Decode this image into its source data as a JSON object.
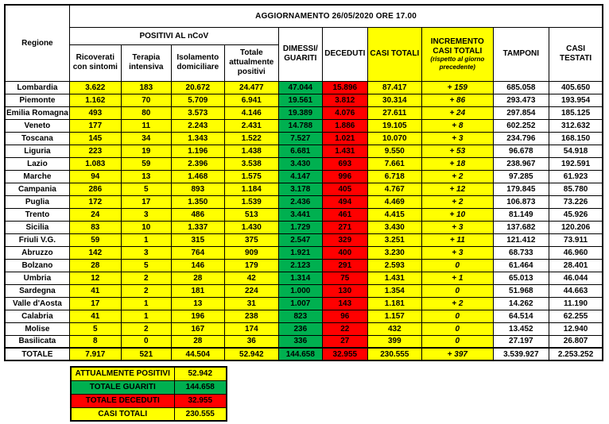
{
  "title": "AGGIORNAMENTO 26/05/2020 ORE 17.00",
  "table": {
    "headers": {
      "regione": "Regione",
      "positivi_group": "POSITIVI AL nCoV",
      "ricoverati": "Ricoverati con sintomi",
      "terapia": "Terapia intensiva",
      "isolamento": "Isolamento domiciliare",
      "totale_positivi": "Totale attualmente positivi",
      "guariti": "DIMESSI/ GUARITI",
      "deceduti": "DECEDUTI",
      "casi_totali": "CASI TOTALI",
      "incremento": "INCREMENTO CASI  TOTALI",
      "incremento_note": "(rispetto al giorno precedente)",
      "tamponi": "TAMPONI",
      "casi_testati": "CASI TESTATI"
    },
    "rows": [
      {
        "name": "Lombardia",
        "ricoverati": "3.622",
        "terapia": "183",
        "isolamento": "20.672",
        "totale_positivi": "24.477",
        "guariti": "47.044",
        "deceduti": "15.896",
        "casi_totali": "87.417",
        "incremento": "+ 159",
        "tamponi": "685.058",
        "casi_testati": "405.650"
      },
      {
        "name": "Piemonte",
        "ricoverati": "1.162",
        "terapia": "70",
        "isolamento": "5.709",
        "totale_positivi": "6.941",
        "guariti": "19.561",
        "deceduti": "3.812",
        "casi_totali": "30.314",
        "incremento": "+ 86",
        "tamponi": "293.473",
        "casi_testati": "193.954"
      },
      {
        "name": "Emilia Romagna",
        "ricoverati": "493",
        "terapia": "80",
        "isolamento": "3.573",
        "totale_positivi": "4.146",
        "guariti": "19.389",
        "deceduti": "4.076",
        "casi_totali": "27.611",
        "incremento": "+ 24",
        "tamponi": "297.854",
        "casi_testati": "185.125"
      },
      {
        "name": "Veneto",
        "ricoverati": "177",
        "terapia": "11",
        "isolamento": "2.243",
        "totale_positivi": "2.431",
        "guariti": "14.788",
        "deceduti": "1.886",
        "casi_totali": "19.105",
        "incremento": "+ 8",
        "tamponi": "602.252",
        "casi_testati": "312.632"
      },
      {
        "name": "Toscana",
        "ricoverati": "145",
        "terapia": "34",
        "isolamento": "1.343",
        "totale_positivi": "1.522",
        "guariti": "7.527",
        "deceduti": "1.021",
        "casi_totali": "10.070",
        "incremento": "+ 3",
        "tamponi": "234.796",
        "casi_testati": "168.150"
      },
      {
        "name": "Liguria",
        "ricoverati": "223",
        "terapia": "19",
        "isolamento": "1.196",
        "totale_positivi": "1.438",
        "guariti": "6.681",
        "deceduti": "1.431",
        "casi_totali": "9.550",
        "incremento": "+ 53",
        "tamponi": "96.678",
        "casi_testati": "54.918"
      },
      {
        "name": "Lazio",
        "ricoverati": "1.083",
        "terapia": "59",
        "isolamento": "2.396",
        "totale_positivi": "3.538",
        "guariti": "3.430",
        "deceduti": "693",
        "casi_totali": "7.661",
        "incremento": "+ 18",
        "tamponi": "238.967",
        "casi_testati": "192.591"
      },
      {
        "name": "Marche",
        "ricoverati": "94",
        "terapia": "13",
        "isolamento": "1.468",
        "totale_positivi": "1.575",
        "guariti": "4.147",
        "deceduti": "996",
        "casi_totali": "6.718",
        "incremento": "+ 2",
        "tamponi": "97.285",
        "casi_testati": "61.923"
      },
      {
        "name": "Campania",
        "ricoverati": "286",
        "terapia": "5",
        "isolamento": "893",
        "totale_positivi": "1.184",
        "guariti": "3.178",
        "deceduti": "405",
        "casi_totali": "4.767",
        "incremento": "+ 12",
        "tamponi": "179.845",
        "casi_testati": "85.780"
      },
      {
        "name": "Puglia",
        "ricoverati": "172",
        "terapia": "17",
        "isolamento": "1.350",
        "totale_positivi": "1.539",
        "guariti": "2.436",
        "deceduti": "494",
        "casi_totali": "4.469",
        "incremento": "+ 2",
        "tamponi": "106.873",
        "casi_testati": "73.226"
      },
      {
        "name": "Trento",
        "ricoverati": "24",
        "terapia": "3",
        "isolamento": "486",
        "totale_positivi": "513",
        "guariti": "3.441",
        "deceduti": "461",
        "casi_totali": "4.415",
        "incremento": "+ 10",
        "tamponi": "81.149",
        "casi_testati": "45.926"
      },
      {
        "name": "Sicilia",
        "ricoverati": "83",
        "terapia": "10",
        "isolamento": "1.337",
        "totale_positivi": "1.430",
        "guariti": "1.729",
        "deceduti": "271",
        "casi_totali": "3.430",
        "incremento": "+ 3",
        "tamponi": "137.682",
        "casi_testati": "120.206"
      },
      {
        "name": "Friuli V.G.",
        "ricoverati": "59",
        "terapia": "1",
        "isolamento": "315",
        "totale_positivi": "375",
        "guariti": "2.547",
        "deceduti": "329",
        "casi_totali": "3.251",
        "incremento": "+ 11",
        "tamponi": "121.412",
        "casi_testati": "73.911"
      },
      {
        "name": "Abruzzo",
        "ricoverati": "142",
        "terapia": "3",
        "isolamento": "764",
        "totale_positivi": "909",
        "guariti": "1.921",
        "deceduti": "400",
        "casi_totali": "3.230",
        "incremento": "+ 3",
        "tamponi": "68.733",
        "casi_testati": "46.960"
      },
      {
        "name": "Bolzano",
        "ricoverati": "28",
        "terapia": "5",
        "isolamento": "146",
        "totale_positivi": "179",
        "guariti": "2.123",
        "deceduti": "291",
        "casi_totali": "2.593",
        "incremento": "0",
        "tamponi": "61.464",
        "casi_testati": "28.401"
      },
      {
        "name": "Umbria",
        "ricoverati": "12",
        "terapia": "2",
        "isolamento": "28",
        "totale_positivi": "42",
        "guariti": "1.314",
        "deceduti": "75",
        "casi_totali": "1.431",
        "incremento": "+ 1",
        "tamponi": "65.013",
        "casi_testati": "46.044"
      },
      {
        "name": "Sardegna",
        "ricoverati": "41",
        "terapia": "2",
        "isolamento": "181",
        "totale_positivi": "224",
        "guariti": "1.000",
        "deceduti": "130",
        "casi_totali": "1.354",
        "incremento": "0",
        "tamponi": "51.968",
        "casi_testati": "44.663"
      },
      {
        "name": "Valle d'Aosta",
        "ricoverati": "17",
        "terapia": "1",
        "isolamento": "13",
        "totale_positivi": "31",
        "guariti": "1.007",
        "deceduti": "143",
        "casi_totali": "1.181",
        "incremento": "+ 2",
        "tamponi": "14.262",
        "casi_testati": "11.190"
      },
      {
        "name": "Calabria",
        "ricoverati": "41",
        "terapia": "1",
        "isolamento": "196",
        "totale_positivi": "238",
        "guariti": "823",
        "deceduti": "96",
        "casi_totali": "1.157",
        "incremento": "0",
        "tamponi": "64.514",
        "casi_testati": "62.255"
      },
      {
        "name": "Molise",
        "ricoverati": "5",
        "terapia": "2",
        "isolamento": "167",
        "totale_positivi": "174",
        "guariti": "236",
        "deceduti": "22",
        "casi_totali": "432",
        "incremento": "0",
        "tamponi": "13.452",
        "casi_testati": "12.940"
      },
      {
        "name": "Basilicata",
        "ricoverati": "8",
        "terapia": "0",
        "isolamento": "28",
        "totale_positivi": "36",
        "guariti": "336",
        "deceduti": "27",
        "casi_totali": "399",
        "incremento": "0",
        "tamponi": "27.197",
        "casi_testati": "26.807"
      }
    ],
    "totale": {
      "name": "TOTALE",
      "ricoverati": "7.917",
      "terapia": "521",
      "isolamento": "44.504",
      "totale_positivi": "52.942",
      "guariti": "144.658",
      "deceduti": "32.955",
      "casi_totali": "230.555",
      "incremento": "+ 397",
      "tamponi": "3.539.927",
      "casi_testati": "2.253.252"
    }
  },
  "summary": {
    "rows": [
      {
        "label": "ATTUALMENTE POSITIVI",
        "value": "52.942",
        "color": "#FFFF00"
      },
      {
        "label": "TOTALE GUARITI",
        "value": "144.658",
        "color": "#00B050"
      },
      {
        "label": "TOTALE DECEDUTI",
        "value": "32.955",
        "color": "#FF0000"
      },
      {
        "label": "CASI TOTALI",
        "value": "230.555",
        "color": "#FFFF00"
      }
    ]
  },
  "colors": {
    "yellow": "#FFFF00",
    "green": "#00B050",
    "red": "#FF0000",
    "incremento_header_text": "#C00000",
    "border": "#000000"
  }
}
